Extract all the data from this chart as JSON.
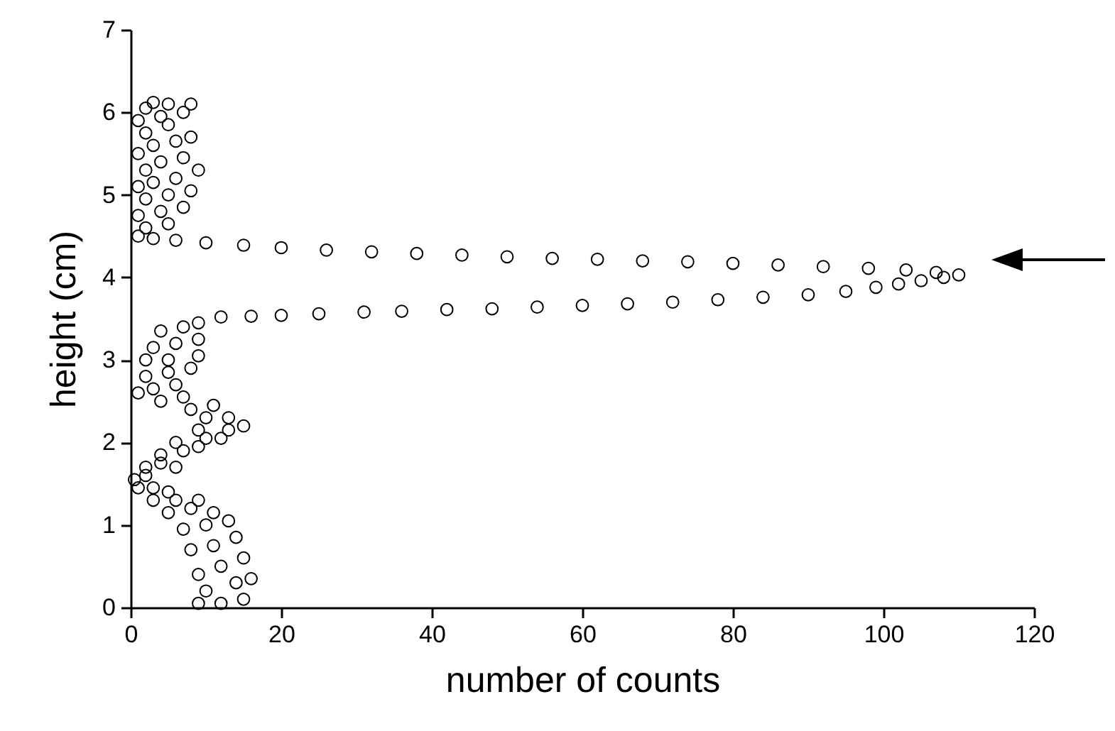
{
  "chart_data": {
    "type": "scatter",
    "xlabel": "number of counts",
    "ylabel": "height (cm)",
    "marker": "circle",
    "color": "#000000",
    "xlim": [
      0,
      120
    ],
    "xticks": [
      0,
      20,
      40,
      60,
      80,
      100,
      120
    ],
    "ylim": [
      0,
      7
    ],
    "yticks": [
      0,
      1,
      2,
      3,
      4,
      5,
      6,
      7
    ],
    "x": [
      9,
      12,
      15,
      10,
      14,
      16,
      9,
      12,
      15,
      8,
      11,
      14,
      7,
      10,
      13,
      5,
      8,
      11,
      3,
      6,
      9,
      1,
      3,
      5,
      0.5,
      2,
      2,
      4,
      6,
      4,
      7,
      9,
      6,
      10,
      12,
      9,
      13,
      15,
      10,
      13,
      8,
      11,
      4,
      7,
      1,
      3,
      6,
      2,
      5,
      8,
      2,
      5,
      9,
      3,
      6,
      9,
      4,
      7,
      9,
      12,
      16,
      20,
      25,
      31,
      36,
      42,
      48,
      54,
      60,
      66,
      72,
      78,
      84,
      90,
      95,
      99,
      102,
      105,
      108,
      110,
      107,
      103,
      98,
      92,
      86,
      80,
      74,
      68,
      62,
      56,
      50,
      44,
      38,
      32,
      26,
      20,
      15,
      10,
      6,
      3,
      1,
      2,
      5,
      1,
      4,
      7,
      2,
      5,
      8,
      1,
      3,
      6,
      9,
      2,
      4,
      7,
      1,
      3,
      6,
      8,
      2,
      5,
      1,
      4,
      7,
      2,
      5,
      8,
      3
    ],
    "values": [
      0.05,
      0.05,
      0.1,
      0.2,
      0.3,
      0.35,
      0.4,
      0.5,
      0.6,
      0.7,
      0.75,
      0.85,
      0.95,
      1.0,
      1.05,
      1.15,
      1.2,
      1.15,
      1.3,
      1.3,
      1.3,
      1.45,
      1.45,
      1.4,
      1.55,
      1.6,
      1.7,
      1.75,
      1.7,
      1.85,
      1.9,
      1.95,
      2.0,
      2.05,
      2.05,
      2.15,
      2.15,
      2.2,
      2.3,
      2.3,
      2.4,
      2.45,
      2.5,
      2.55,
      2.6,
      2.65,
      2.7,
      2.8,
      2.85,
      2.9,
      3.0,
      3.0,
      3.05,
      3.15,
      3.2,
      3.25,
      3.35,
      3.4,
      3.45,
      3.52,
      3.53,
      3.54,
      3.56,
      3.58,
      3.59,
      3.61,
      3.62,
      3.64,
      3.66,
      3.68,
      3.7,
      3.73,
      3.76,
      3.79,
      3.83,
      3.88,
      3.92,
      3.96,
      4.0,
      4.03,
      4.06,
      4.09,
      4.11,
      4.13,
      4.15,
      4.17,
      4.19,
      4.2,
      4.22,
      4.23,
      4.25,
      4.27,
      4.29,
      4.31,
      4.33,
      4.36,
      4.39,
      4.42,
      4.45,
      4.47,
      4.5,
      4.6,
      4.65,
      4.75,
      4.8,
      4.85,
      4.95,
      5.0,
      5.05,
      5.1,
      5.15,
      5.2,
      5.3,
      5.3,
      5.4,
      5.45,
      5.5,
      5.6,
      5.65,
      5.7,
      5.75,
      5.85,
      5.9,
      5.95,
      6.0,
      6.05,
      6.1,
      6.1,
      6.12
    ]
  }
}
